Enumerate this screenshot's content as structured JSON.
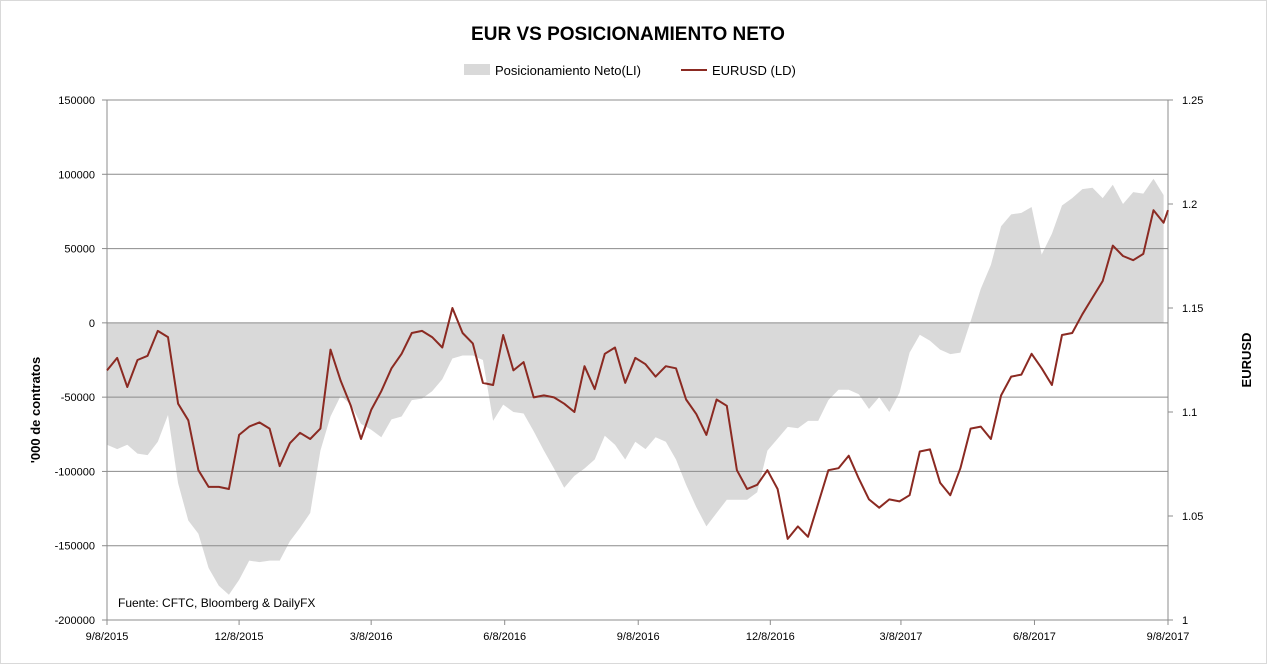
{
  "chart_data": {
    "type": "area+line",
    "title": "EUR VS  POSICIONAMIENTO NETO",
    "ylabel_left": "'000 de contratos",
    "ylabel_right": "EURUSD",
    "source_note": "Fuente: CFTC, Bloomberg & DailyFX",
    "legend_position": "top-center",
    "gridlines": "horizontal",
    "ylim_left": [
      -200000,
      150000
    ],
    "ylim_right": [
      1,
      1.25
    ],
    "left_ticks": [
      "150000",
      "100000",
      "50000",
      "0",
      "-50000",
      "-100000",
      "-150000",
      "-200000"
    ],
    "right_ticks": [
      "1.25",
      "1.2",
      "1.15",
      "1.1",
      "1.05",
      "1"
    ],
    "x_tick_labels": [
      "9/8/2015",
      "12/8/2015",
      "3/8/2016",
      "6/8/2016",
      "9/8/2016",
      "12/8/2016",
      "3/8/2017",
      "6/8/2017",
      "9/8/2017"
    ],
    "x_start": "2015-09-08",
    "x_end": "2017-09-08",
    "series": [
      {
        "name": "Posicionamiento Neto(LI)",
        "type": "area",
        "axis": "left",
        "color": "#d9d9d9",
        "points": [
          [
            "2015-09-08",
            -82000
          ],
          [
            "2015-09-15",
            -85000
          ],
          [
            "2015-09-22",
            -82000
          ],
          [
            "2015-09-29",
            -88000
          ],
          [
            "2015-10-06",
            -89000
          ],
          [
            "2015-10-13",
            -80000
          ],
          [
            "2015-10-20",
            -62000
          ],
          [
            "2015-10-27",
            -108000
          ],
          [
            "2015-11-03",
            -133000
          ],
          [
            "2015-11-10",
            -142000
          ],
          [
            "2015-11-17",
            -165000
          ],
          [
            "2015-11-24",
            -177000
          ],
          [
            "2015-12-01",
            -183000
          ],
          [
            "2015-12-08",
            -173000
          ],
          [
            "2015-12-15",
            -160000
          ],
          [
            "2015-12-22",
            -161000
          ],
          [
            "2015-12-29",
            -160000
          ],
          [
            "2016-01-05",
            -160000
          ],
          [
            "2016-01-12",
            -147000
          ],
          [
            "2016-01-19",
            -138000
          ],
          [
            "2016-01-26",
            -128000
          ],
          [
            "2016-02-02",
            -86000
          ],
          [
            "2016-02-09",
            -63000
          ],
          [
            "2016-02-16",
            -49000
          ],
          [
            "2016-02-23",
            -55000
          ],
          [
            "2016-03-01",
            -68000
          ],
          [
            "2016-03-08",
            -72000
          ],
          [
            "2016-03-15",
            -77000
          ],
          [
            "2016-03-22",
            -65000
          ],
          [
            "2016-03-29",
            -63000
          ],
          [
            "2016-04-05",
            -52000
          ],
          [
            "2016-04-12",
            -51000
          ],
          [
            "2016-04-19",
            -46000
          ],
          [
            "2016-04-26",
            -38000
          ],
          [
            "2016-05-03",
            -24000
          ],
          [
            "2016-05-10",
            -22000
          ],
          [
            "2016-05-17",
            -22000
          ],
          [
            "2016-05-24",
            -25000
          ],
          [
            "2016-05-31",
            -66000
          ],
          [
            "2016-06-07",
            -55000
          ],
          [
            "2016-06-14",
            -60000
          ],
          [
            "2016-06-21",
            -61000
          ],
          [
            "2016-06-28",
            -73000
          ],
          [
            "2016-07-05",
            -86000
          ],
          [
            "2016-07-12",
            -98000
          ],
          [
            "2016-07-19",
            -111000
          ],
          [
            "2016-07-26",
            -103000
          ],
          [
            "2016-08-02",
            -98000
          ],
          [
            "2016-08-09",
            -92000
          ],
          [
            "2016-08-16",
            -76000
          ],
          [
            "2016-08-23",
            -82000
          ],
          [
            "2016-08-30",
            -92000
          ],
          [
            "2016-09-06",
            -80000
          ],
          [
            "2016-09-13",
            -85000
          ],
          [
            "2016-09-20",
            -77000
          ],
          [
            "2016-09-27",
            -80000
          ],
          [
            "2016-10-04",
            -92000
          ],
          [
            "2016-10-11",
            -109000
          ],
          [
            "2016-10-18",
            -124000
          ],
          [
            "2016-10-25",
            -137000
          ],
          [
            "2016-11-01",
            -128000
          ],
          [
            "2016-11-08",
            -119000
          ],
          [
            "2016-11-15",
            -119000
          ],
          [
            "2016-11-22",
            -119000
          ],
          [
            "2016-11-29",
            -114000
          ],
          [
            "2016-12-06",
            -86000
          ],
          [
            "2016-12-13",
            -78000
          ],
          [
            "2016-12-20",
            -70000
          ],
          [
            "2016-12-27",
            -71000
          ],
          [
            "2017-01-03",
            -66000
          ],
          [
            "2017-01-10",
            -66000
          ],
          [
            "2017-01-17",
            -52000
          ],
          [
            "2017-01-24",
            -45000
          ],
          [
            "2017-01-31",
            -45000
          ],
          [
            "2017-02-07",
            -48000
          ],
          [
            "2017-02-14",
            -58000
          ],
          [
            "2017-02-21",
            -50000
          ],
          [
            "2017-02-28",
            -60000
          ],
          [
            "2017-03-07",
            -47000
          ],
          [
            "2017-03-14",
            -20000
          ],
          [
            "2017-03-21",
            -8000
          ],
          [
            "2017-03-28",
            -12000
          ],
          [
            "2017-04-04",
            -18000
          ],
          [
            "2017-04-11",
            -21000
          ],
          [
            "2017-04-18",
            -20000
          ],
          [
            "2017-04-25",
            1000
          ],
          [
            "2017-05-02",
            23000
          ],
          [
            "2017-05-09",
            39000
          ],
          [
            "2017-05-16",
            65000
          ],
          [
            "2017-05-23",
            73000
          ],
          [
            "2017-05-30",
            74000
          ],
          [
            "2017-06-06",
            78000
          ],
          [
            "2017-06-13",
            46000
          ],
          [
            "2017-06-20",
            60000
          ],
          [
            "2017-06-27",
            79000
          ],
          [
            "2017-07-04",
            84000
          ],
          [
            "2017-07-11",
            90000
          ],
          [
            "2017-07-18",
            91000
          ],
          [
            "2017-07-25",
            84000
          ],
          [
            "2017-08-01",
            93000
          ],
          [
            "2017-08-08",
            80000
          ],
          [
            "2017-08-15",
            88000
          ],
          [
            "2017-08-22",
            87000
          ],
          [
            "2017-08-29",
            97000
          ],
          [
            "2017-09-05",
            86000
          ]
        ]
      },
      {
        "name": "EURUSD (LD)",
        "type": "line",
        "axis": "right",
        "color": "#8b2a22",
        "points": [
          [
            "2015-09-08",
            1.12
          ],
          [
            "2015-09-15",
            1.126
          ],
          [
            "2015-09-22",
            1.112
          ],
          [
            "2015-09-29",
            1.125
          ],
          [
            "2015-10-06",
            1.127
          ],
          [
            "2015-10-13",
            1.139
          ],
          [
            "2015-10-20",
            1.136
          ],
          [
            "2015-10-27",
            1.104
          ],
          [
            "2015-11-03",
            1.096
          ],
          [
            "2015-11-10",
            1.072
          ],
          [
            "2015-11-17",
            1.064
          ],
          [
            "2015-11-24",
            1.064
          ],
          [
            "2015-12-01",
            1.063
          ],
          [
            "2015-12-08",
            1.089
          ],
          [
            "2015-12-15",
            1.093
          ],
          [
            "2015-12-22",
            1.095
          ],
          [
            "2015-12-29",
            1.092
          ],
          [
            "2016-01-05",
            1.074
          ],
          [
            "2016-01-12",
            1.085
          ],
          [
            "2016-01-19",
            1.09
          ],
          [
            "2016-01-26",
            1.087
          ],
          [
            "2016-02-02",
            1.092
          ],
          [
            "2016-02-09",
            1.13
          ],
          [
            "2016-02-16",
            1.115
          ],
          [
            "2016-02-23",
            1.103
          ],
          [
            "2016-03-01",
            1.087
          ],
          [
            "2016-03-08",
            1.101
          ],
          [
            "2016-03-15",
            1.11
          ],
          [
            "2016-03-22",
            1.121
          ],
          [
            "2016-03-29",
            1.128
          ],
          [
            "2016-04-05",
            1.138
          ],
          [
            "2016-04-12",
            1.139
          ],
          [
            "2016-04-19",
            1.136
          ],
          [
            "2016-04-26",
            1.131
          ],
          [
            "2016-05-03",
            1.15
          ],
          [
            "2016-05-10",
            1.138
          ],
          [
            "2016-05-17",
            1.133
          ],
          [
            "2016-05-24",
            1.114
          ],
          [
            "2016-05-31",
            1.113
          ],
          [
            "2016-06-07",
            1.137
          ],
          [
            "2016-06-14",
            1.12
          ],
          [
            "2016-06-21",
            1.124
          ],
          [
            "2016-06-28",
            1.107
          ],
          [
            "2016-07-05",
            1.108
          ],
          [
            "2016-07-12",
            1.107
          ],
          [
            "2016-07-19",
            1.104
          ],
          [
            "2016-07-26",
            1.1
          ],
          [
            "2016-08-02",
            1.122
          ],
          [
            "2016-08-09",
            1.111
          ],
          [
            "2016-08-16",
            1.128
          ],
          [
            "2016-08-23",
            1.131
          ],
          [
            "2016-08-30",
            1.114
          ],
          [
            "2016-09-06",
            1.126
          ],
          [
            "2016-09-13",
            1.123
          ],
          [
            "2016-09-20",
            1.117
          ],
          [
            "2016-09-27",
            1.122
          ],
          [
            "2016-10-04",
            1.121
          ],
          [
            "2016-10-11",
            1.106
          ],
          [
            "2016-10-18",
            1.099
          ],
          [
            "2016-10-25",
            1.089
          ],
          [
            "2016-11-01",
            1.106
          ],
          [
            "2016-11-08",
            1.103
          ],
          [
            "2016-11-15",
            1.072
          ],
          [
            "2016-11-22",
            1.063
          ],
          [
            "2016-11-29",
            1.065
          ],
          [
            "2016-12-06",
            1.072
          ],
          [
            "2016-12-13",
            1.063
          ],
          [
            "2016-12-20",
            1.039
          ],
          [
            "2016-12-27",
            1.045
          ],
          [
            "2017-01-03",
            1.04
          ],
          [
            "2017-01-10",
            1.056
          ],
          [
            "2017-01-17",
            1.072
          ],
          [
            "2017-01-24",
            1.073
          ],
          [
            "2017-01-31",
            1.079
          ],
          [
            "2017-02-07",
            1.068
          ],
          [
            "2017-02-14",
            1.058
          ],
          [
            "2017-02-21",
            1.054
          ],
          [
            "2017-02-28",
            1.058
          ],
          [
            "2017-03-07",
            1.057
          ],
          [
            "2017-03-14",
            1.06
          ],
          [
            "2017-03-21",
            1.081
          ],
          [
            "2017-03-28",
            1.082
          ],
          [
            "2017-04-04",
            1.066
          ],
          [
            "2017-04-11",
            1.06
          ],
          [
            "2017-04-18",
            1.073
          ],
          [
            "2017-04-25",
            1.092
          ],
          [
            "2017-05-02",
            1.093
          ],
          [
            "2017-05-09",
            1.087
          ],
          [
            "2017-05-16",
            1.108
          ],
          [
            "2017-05-23",
            1.117
          ],
          [
            "2017-05-30",
            1.118
          ],
          [
            "2017-06-06",
            1.128
          ],
          [
            "2017-06-13",
            1.121
          ],
          [
            "2017-06-20",
            1.113
          ],
          [
            "2017-06-27",
            1.137
          ],
          [
            "2017-07-04",
            1.138
          ],
          [
            "2017-07-11",
            1.147
          ],
          [
            "2017-07-18",
            1.155
          ],
          [
            "2017-07-25",
            1.163
          ],
          [
            "2017-08-01",
            1.18
          ],
          [
            "2017-08-08",
            1.175
          ],
          [
            "2017-08-15",
            1.173
          ],
          [
            "2017-08-22",
            1.176
          ],
          [
            "2017-08-29",
            1.197
          ],
          [
            "2017-09-05",
            1.191
          ],
          [
            "2017-09-08",
            1.197
          ]
        ]
      }
    ]
  }
}
